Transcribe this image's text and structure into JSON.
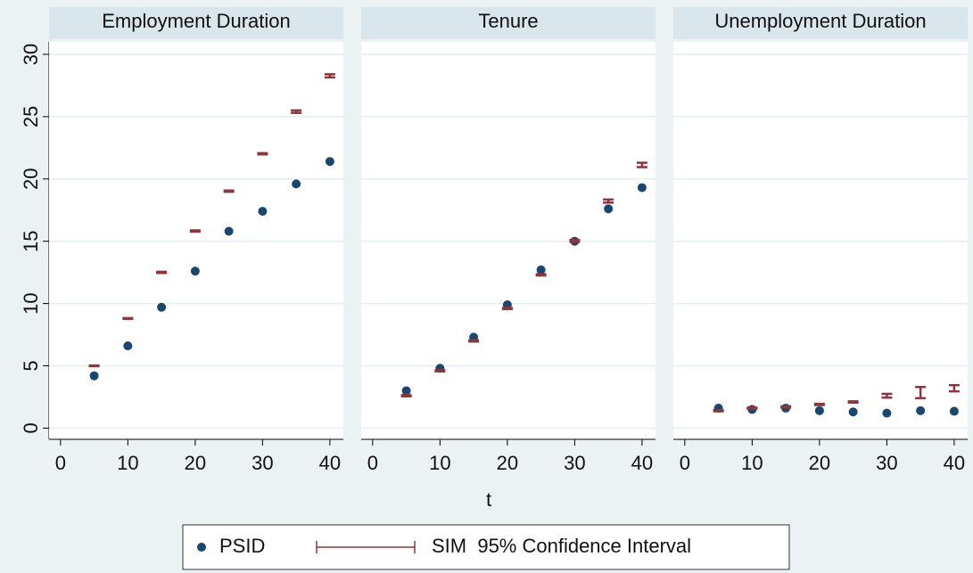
{
  "chart_data": {
    "type": "scatter",
    "xlabel": "t",
    "x": [
      5,
      10,
      15,
      20,
      25,
      30,
      35,
      40
    ],
    "xlim": [
      -1.7,
      42
    ],
    "xticks": [
      0,
      10,
      20,
      30,
      40
    ],
    "ylim": [
      -0.9,
      31
    ],
    "yticks": [
      0,
      5,
      10,
      15,
      20,
      25,
      30
    ],
    "grid": true,
    "panels": [
      {
        "title": "Employment Duration",
        "series": [
          {
            "name": "PSID",
            "color": "#1a476f",
            "values": [
              4.2,
              6.6,
              9.7,
              12.6,
              15.8,
              17.4,
              19.6,
              21.4
            ]
          },
          {
            "name": "SIM  95% Confidence Interval",
            "color": "#90353b",
            "lower": [
              4.97,
              8.77,
              12.45,
              15.77,
              18.97,
              21.97,
              25.3,
              28.15
            ],
            "upper": [
              5.03,
              8.83,
              12.55,
              15.87,
              19.07,
              22.07,
              25.5,
              28.4
            ]
          }
        ]
      },
      {
        "title": "Tenure",
        "series": [
          {
            "name": "PSID",
            "color": "#1a476f",
            "values": [
              3.0,
              4.8,
              7.3,
              9.9,
              12.7,
              15.0,
              17.6,
              19.3
            ]
          },
          {
            "name": "SIM  95% Confidence Interval",
            "color": "#90353b",
            "lower": [
              2.55,
              4.55,
              6.95,
              9.55,
              12.25,
              14.95,
              18.1,
              20.95
            ],
            "upper": [
              2.65,
              4.65,
              7.05,
              9.65,
              12.35,
              15.1,
              18.35,
              21.3
            ]
          }
        ]
      },
      {
        "title": "Unemployment Duration",
        "series": [
          {
            "name": "PSID",
            "color": "#1a476f",
            "values": [
              1.6,
              1.5,
              1.6,
              1.4,
              1.3,
              1.2,
              1.4,
              1.35
            ]
          },
          {
            "name": "SIM  95% Confidence Interval",
            "color": "#90353b",
            "lower": [
              1.35,
              1.55,
              1.65,
              1.85,
              2.05,
              2.45,
              2.4,
              2.95
            ],
            "upper": [
              1.45,
              1.65,
              1.75,
              1.95,
              2.15,
              2.75,
              3.3,
              3.45
            ]
          }
        ]
      }
    ]
  }
}
